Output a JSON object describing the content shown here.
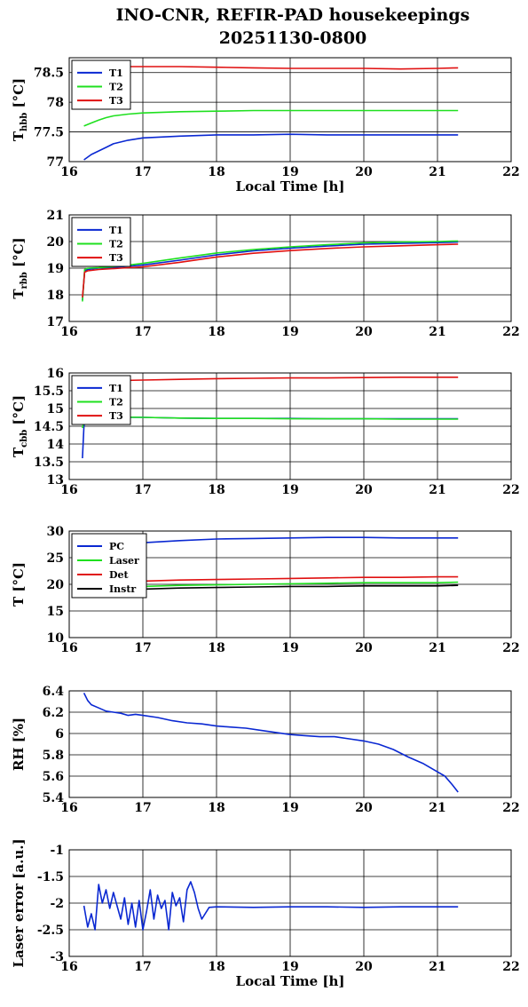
{
  "title": {
    "line1": "INO-CNR, REFIR-PAD housekeepings",
    "line2": "20251130-0800"
  },
  "colors": {
    "blue": "#0a28d2",
    "green": "#1fe01f",
    "red": "#e01010",
    "black": "#000000"
  },
  "chart_data": [
    {
      "type": "line",
      "ylabel_main": "T",
      "ylabel_sub": "hbb",
      "ylabel_unit": "[°C]",
      "xlabel": "Local Time [h]",
      "xlim": [
        16,
        22
      ],
      "ylim": [
        77,
        78.75
      ],
      "xticks": [
        16,
        17,
        18,
        19,
        20,
        21,
        22
      ],
      "yticks": [
        77,
        77.5,
        78,
        78.5
      ],
      "ytick_labels": [
        "77",
        "77.5",
        "78",
        "78.5"
      ],
      "grid": true,
      "legend": "top-left",
      "series": [
        {
          "name": "T1",
          "color": "blue",
          "x": [
            16.2,
            16.3,
            16.4,
            16.5,
            16.6,
            16.8,
            17.0,
            17.5,
            18.0,
            18.5,
            19.0,
            19.5,
            20.0,
            20.5,
            21.0,
            21.28
          ],
          "y": [
            77.03,
            77.12,
            77.18,
            77.24,
            77.3,
            77.36,
            77.4,
            77.43,
            77.45,
            77.45,
            77.46,
            77.45,
            77.45,
            77.45,
            77.45,
            77.45
          ]
        },
        {
          "name": "T2",
          "color": "green",
          "x": [
            16.2,
            16.3,
            16.4,
            16.5,
            16.6,
            16.8,
            17.0,
            17.5,
            18.0,
            18.5,
            19.0,
            19.5,
            20.0,
            20.5,
            21.0,
            21.28
          ],
          "y": [
            77.6,
            77.65,
            77.7,
            77.74,
            77.77,
            77.8,
            77.82,
            77.84,
            77.85,
            77.86,
            77.86,
            77.86,
            77.86,
            77.86,
            77.86,
            77.86
          ]
        },
        {
          "name": "T3",
          "color": "red",
          "x": [
            16.2,
            16.5,
            17.0,
            17.5,
            18.0,
            18.5,
            19.0,
            19.5,
            20.0,
            20.5,
            21.0,
            21.28
          ],
          "y": [
            78.6,
            78.6,
            78.6,
            78.6,
            78.59,
            78.58,
            78.57,
            78.57,
            78.57,
            78.56,
            78.57,
            78.58
          ]
        }
      ]
    },
    {
      "type": "line",
      "ylabel_main": "T",
      "ylabel_sub": "rbb",
      "ylabel_unit": "[°C]",
      "xlabel": "",
      "xlim": [
        16,
        22
      ],
      "ylim": [
        17,
        21
      ],
      "xticks": [
        16,
        17,
        18,
        19,
        20,
        21,
        22
      ],
      "yticks": [
        17,
        18,
        19,
        20,
        21
      ],
      "ytick_labels": [
        "17",
        "18",
        "19",
        "20",
        "21"
      ],
      "grid": true,
      "legend": "top-left",
      "series": [
        {
          "name": "T1",
          "color": "blue",
          "x": [
            16.18,
            16.21,
            16.25,
            16.4,
            16.7,
            17.0,
            17.5,
            18.0,
            18.5,
            19.0,
            19.5,
            20.0,
            20.5,
            21.0,
            21.28
          ],
          "y": [
            17.8,
            18.9,
            18.95,
            19.0,
            19.05,
            19.12,
            19.3,
            19.5,
            19.65,
            19.75,
            19.83,
            19.9,
            19.93,
            19.96,
            19.98
          ]
        },
        {
          "name": "T2",
          "color": "green",
          "x": [
            16.18,
            16.21,
            16.25,
            16.4,
            16.7,
            17.0,
            17.5,
            18.0,
            18.5,
            19.0,
            19.5,
            20.0,
            20.5,
            21.0,
            21.28
          ],
          "y": [
            17.75,
            18.95,
            19.0,
            19.02,
            19.08,
            19.18,
            19.38,
            19.57,
            19.7,
            19.8,
            19.88,
            19.95,
            19.98,
            20.0,
            20.02
          ]
        },
        {
          "name": "T3",
          "color": "red",
          "x": [
            16.18,
            16.21,
            16.25,
            16.4,
            16.7,
            17.0,
            17.5,
            18.0,
            18.5,
            19.0,
            19.5,
            20.0,
            20.5,
            21.0,
            21.28
          ],
          "y": [
            17.9,
            18.85,
            18.9,
            18.95,
            19.0,
            19.05,
            19.22,
            19.42,
            19.56,
            19.66,
            19.74,
            19.8,
            19.84,
            19.88,
            19.9
          ]
        }
      ]
    },
    {
      "type": "line",
      "ylabel_main": "T",
      "ylabel_sub": "cbb",
      "ylabel_unit": "[°C]",
      "xlabel": "",
      "xlim": [
        16,
        22
      ],
      "ylim": [
        13,
        16
      ],
      "xticks": [
        16,
        17,
        18,
        19,
        20,
        21,
        22
      ],
      "yticks": [
        13,
        13.5,
        14,
        14.5,
        15,
        15.5,
        16
      ],
      "ytick_labels": [
        "13",
        "13.5",
        "14",
        "14.5",
        "15",
        "15.5",
        "16"
      ],
      "grid": true,
      "legend": "top-left",
      "series": [
        {
          "name": "T1",
          "color": "blue",
          "x": [
            16.18,
            16.2,
            16.22,
            16.3,
            16.6,
            17.0,
            17.5,
            18.0,
            18.5,
            19.0,
            19.5,
            20.0,
            20.5,
            21.0,
            21.28
          ],
          "y": [
            13.6,
            14.5,
            14.7,
            14.74,
            14.75,
            14.75,
            14.73,
            14.72,
            14.72,
            14.72,
            14.71,
            14.71,
            14.71,
            14.71,
            14.71
          ]
        },
        {
          "name": "T2",
          "color": "green",
          "x": [
            16.18,
            16.2,
            16.22,
            16.3,
            16.6,
            17.0,
            17.5,
            18.0,
            18.5,
            19.0,
            19.5,
            20.0,
            20.5,
            21.0,
            21.28
          ],
          "y": [
            14.45,
            14.65,
            14.72,
            14.76,
            14.76,
            14.75,
            14.73,
            14.72,
            14.72,
            14.71,
            14.71,
            14.71,
            14.7,
            14.7,
            14.7
          ]
        },
        {
          "name": "T3",
          "color": "red",
          "x": [
            16.2,
            16.5,
            17.0,
            17.5,
            18.0,
            18.5,
            19.0,
            19.5,
            20.0,
            20.5,
            21.0,
            21.28
          ],
          "y": [
            15.78,
            15.78,
            15.8,
            15.82,
            15.84,
            15.85,
            15.86,
            15.86,
            15.87,
            15.88,
            15.88,
            15.88
          ]
        }
      ]
    },
    {
      "type": "line",
      "ylabel_main": "T [°C]",
      "ylabel_sub": "",
      "ylabel_unit": "",
      "xlabel": "",
      "xlim": [
        16,
        22
      ],
      "ylim": [
        10,
        30
      ],
      "xticks": [
        16,
        17,
        18,
        19,
        20,
        21,
        22
      ],
      "yticks": [
        10,
        15,
        20,
        25,
        30
      ],
      "ytick_labels": [
        "10",
        "15",
        "20",
        "25",
        "30"
      ],
      "grid": true,
      "legend": "top-left",
      "series": [
        {
          "name": "PC",
          "color": "blue",
          "x": [
            16.2,
            16.5,
            17.0,
            17.5,
            18.0,
            18.5,
            19.0,
            19.5,
            20.0,
            20.5,
            21.0,
            21.28
          ],
          "y": [
            27.0,
            27.3,
            27.8,
            28.2,
            28.5,
            28.6,
            28.7,
            28.8,
            28.8,
            28.7,
            28.7,
            28.7
          ]
        },
        {
          "name": "Laser",
          "color": "green",
          "x": [
            16.2,
            16.5,
            17.0,
            17.5,
            18.0,
            18.5,
            19.0,
            19.5,
            20.0,
            20.5,
            21.0,
            21.28
          ],
          "y": [
            19.2,
            19.4,
            19.6,
            19.8,
            19.9,
            20.0,
            20.1,
            20.2,
            20.3,
            20.3,
            20.3,
            20.4
          ]
        },
        {
          "name": "Det",
          "color": "red",
          "x": [
            16.2,
            16.5,
            17.0,
            17.5,
            18.0,
            18.5,
            19.0,
            19.5,
            20.0,
            20.5,
            21.0,
            21.28
          ],
          "y": [
            20.2,
            20.4,
            20.6,
            20.8,
            20.9,
            21.0,
            21.1,
            21.2,
            21.3,
            21.3,
            21.4,
            21.4
          ]
        },
        {
          "name": "Instr",
          "color": "black",
          "x": [
            16.2,
            16.5,
            17.0,
            17.5,
            18.0,
            18.5,
            19.0,
            19.5,
            20.0,
            20.5,
            21.0,
            21.28
          ],
          "y": [
            18.8,
            18.9,
            19.1,
            19.3,
            19.4,
            19.5,
            19.6,
            19.6,
            19.7,
            19.7,
            19.7,
            19.8
          ]
        }
      ]
    },
    {
      "type": "line",
      "ylabel_main": "RH [%]",
      "ylabel_sub": "",
      "ylabel_unit": "",
      "xlabel": "",
      "xlim": [
        16,
        22
      ],
      "ylim": [
        5.4,
        6.4
      ],
      "xticks": [
        16,
        17,
        18,
        19,
        20,
        21,
        22
      ],
      "yticks": [
        5.4,
        5.6,
        5.8,
        6.0,
        6.2,
        6.4
      ],
      "ytick_labels": [
        "5.4",
        "5.6",
        "5.8",
        "6",
        "6.2",
        "6.4"
      ],
      "grid": true,
      "legend": "none",
      "series": [
        {
          "name": "",
          "color": "blue",
          "x": [
            16.2,
            16.25,
            16.3,
            16.4,
            16.5,
            16.6,
            16.7,
            16.8,
            16.9,
            17.0,
            17.2,
            17.4,
            17.6,
            17.8,
            18.0,
            18.2,
            18.4,
            18.6,
            18.8,
            19.0,
            19.2,
            19.4,
            19.6,
            19.8,
            20.0,
            20.2,
            20.4,
            20.6,
            20.8,
            21.0,
            21.1,
            21.2,
            21.28
          ],
          "y": [
            6.38,
            6.31,
            6.27,
            6.24,
            6.21,
            6.2,
            6.19,
            6.17,
            6.18,
            6.17,
            6.15,
            6.12,
            6.1,
            6.09,
            6.07,
            6.06,
            6.05,
            6.03,
            6.01,
            5.99,
            5.98,
            5.97,
            5.97,
            5.95,
            5.93,
            5.9,
            5.85,
            5.78,
            5.72,
            5.64,
            5.6,
            5.52,
            5.45
          ]
        }
      ]
    },
    {
      "type": "line",
      "ylabel_main": "Laser error [a.u.]",
      "ylabel_sub": "",
      "ylabel_unit": "",
      "xlabel": "Local Time [h]",
      "xlim": [
        16,
        22
      ],
      "ylim": [
        -3,
        -1
      ],
      "xticks": [
        16,
        17,
        18,
        19,
        20,
        21,
        22
      ],
      "yticks": [
        -3,
        -2.5,
        -2,
        -1.5,
        -1
      ],
      "ytick_labels": [
        "-3",
        "-2.5",
        "-2",
        "-1.5",
        "-1"
      ],
      "grid": true,
      "legend": "none",
      "series": [
        {
          "name": "",
          "color": "blue",
          "x": [
            16.2,
            16.25,
            16.3,
            16.35,
            16.4,
            16.45,
            16.5,
            16.55,
            16.6,
            16.65,
            16.7,
            16.75,
            16.8,
            16.85,
            16.9,
            16.95,
            17.0,
            17.05,
            17.1,
            17.15,
            17.2,
            17.25,
            17.3,
            17.35,
            17.4,
            17.45,
            17.5,
            17.55,
            17.6,
            17.65,
            17.7,
            17.75,
            17.8,
            17.9,
            18.0,
            18.5,
            19.0,
            19.5,
            20.0,
            20.5,
            21.0,
            21.28
          ],
          "y": [
            -2.05,
            -2.45,
            -2.2,
            -2.5,
            -1.65,
            -2.0,
            -1.75,
            -2.1,
            -1.8,
            -2.05,
            -2.3,
            -1.9,
            -2.4,
            -2.0,
            -2.45,
            -1.95,
            -2.5,
            -2.15,
            -1.75,
            -2.3,
            -1.85,
            -2.1,
            -1.95,
            -2.5,
            -1.8,
            -2.05,
            -1.9,
            -2.35,
            -1.75,
            -1.6,
            -1.8,
            -2.1,
            -2.3,
            -2.08,
            -2.07,
            -2.08,
            -2.07,
            -2.07,
            -2.08,
            -2.07,
            -2.07,
            -2.07
          ]
        }
      ]
    }
  ]
}
